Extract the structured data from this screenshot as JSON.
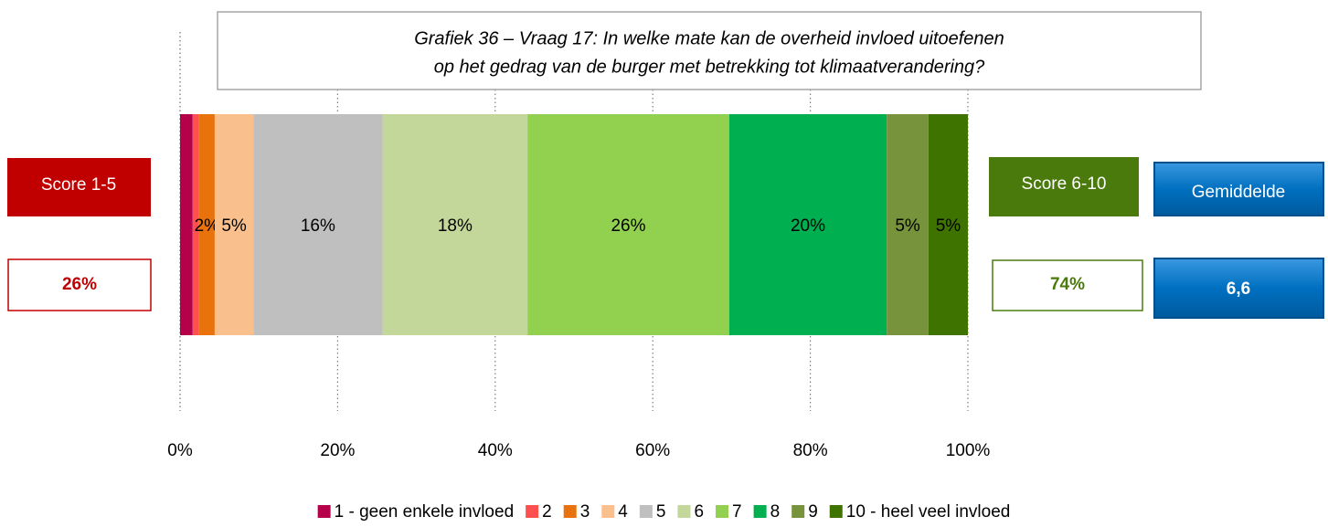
{
  "chart_data": {
    "type": "stacked-bar-100",
    "title": [
      "Grafiek 36 – Vraag 17:  In welke mate kan de overheid invloed uitoefenen",
      "op het gedrag van de burger met betrekking tot klimaatverandering?"
    ],
    "series": [
      {
        "name": "1 - geen enkele invloed",
        "color": "#b5004a",
        "values": [
          1.6
        ],
        "value_labels": [
          null
        ]
      },
      {
        "name": "2",
        "color": "#ff5050",
        "values": [
          0.8
        ],
        "value_labels": [
          null
        ]
      },
      {
        "name": "3",
        "color": "#e8720c",
        "values": [
          2.0
        ],
        "value_labels": [
          "2%"
        ]
      },
      {
        "name": "4",
        "color": "#f9c08e",
        "values": [
          4.9
        ],
        "value_labels": [
          "5%"
        ]
      },
      {
        "name": "5",
        "color": "#bfbfbf",
        "values": [
          16.4
        ],
        "value_labels": [
          "16%"
        ]
      },
      {
        "name": "6",
        "color": "#c4d79b",
        "values": [
          18.4
        ],
        "value_labels": [
          "18%"
        ]
      },
      {
        "name": "7",
        "color": "#92d050",
        "values": [
          25.6
        ],
        "value_labels": [
          "26%"
        ]
      },
      {
        "name": "8",
        "color": "#00b050",
        "values": [
          20.0
        ],
        "value_labels": [
          "20%"
        ]
      },
      {
        "name": "9",
        "color": "#77933c",
        "values": [
          5.3
        ],
        "value_labels": [
          "5%"
        ]
      },
      {
        "name": "10 - heel veel invloed",
        "color": "#3f7300",
        "values": [
          5.0
        ],
        "value_labels": [
          "5%"
        ]
      }
    ],
    "xlim": [
      0,
      100
    ],
    "xticks": [
      {
        "value": 0,
        "label": "0%"
      },
      {
        "value": 20,
        "label": "20%"
      },
      {
        "value": 40,
        "label": "40%"
      },
      {
        "value": 60,
        "label": "60%"
      },
      {
        "value": 80,
        "label": "80%"
      },
      {
        "value": 100,
        "label": "100%"
      }
    ],
    "grid": true,
    "legend": "bottom"
  },
  "summary": {
    "low": {
      "label": "Score 1-5",
      "value": "26%"
    },
    "high": {
      "label": "Score 6-10",
      "value": "74%"
    },
    "mean": {
      "label": "Gemiddelde",
      "value": "6,6"
    }
  }
}
